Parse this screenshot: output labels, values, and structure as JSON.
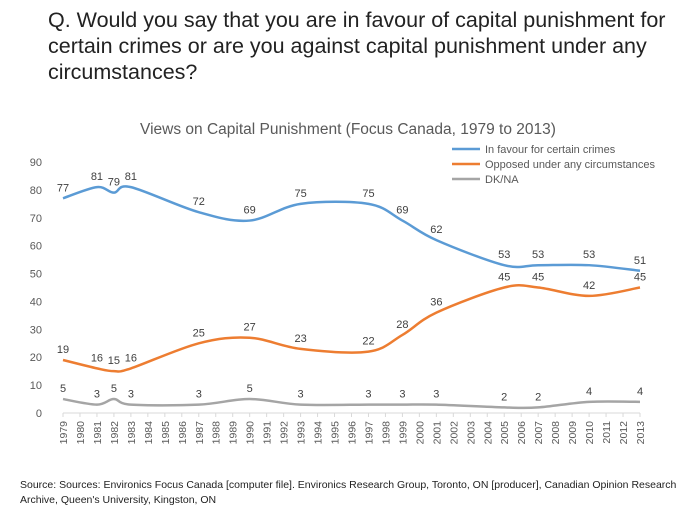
{
  "question": "Q.  Would you say that you are in favour of capital punishment for certain crimes or are you against capital punishment under any circumstances?",
  "source": "Source:  Sources: Environics Focus Canada [computer file]. Environics Research Group, Toronto, ON [producer], Canadian Opinion Research Archive, Queen's University, Kingston, ON",
  "chart_data": {
    "type": "line",
    "title": "Views on Capital Punishment (Focus Canada, 1979 to 2013)",
    "xlabel": "",
    "ylabel": "",
    "ylim": [
      0,
      90
    ],
    "yticks": [
      0,
      10,
      20,
      30,
      40,
      50,
      60,
      70,
      80,
      90
    ],
    "grid": false,
    "legend_position": "top-right",
    "x": [
      "1979",
      "1980",
      "1981",
      "1982",
      "1983",
      "1984",
      "1985",
      "1986",
      "1987",
      "1988",
      "1989",
      "1990",
      "1991",
      "1992",
      "1993",
      "1994",
      "1995",
      "1996",
      "1997",
      "1998",
      "1999",
      "2000",
      "2001",
      "2002",
      "2003",
      "2004",
      "2005",
      "2006",
      "2007",
      "2008",
      "2009",
      "2010",
      "2011",
      "2012",
      "2013"
    ],
    "series": [
      {
        "name": "In favour for certain crimes",
        "color": "#5B9BD5",
        "points": [
          {
            "x": "1979",
            "y": 77
          },
          {
            "x": "1981",
            "y": 81
          },
          {
            "x": "1982",
            "y": 79
          },
          {
            "x": "1983",
            "y": 81
          },
          {
            "x": "1987",
            "y": 72
          },
          {
            "x": "1990",
            "y": 69
          },
          {
            "x": "1993",
            "y": 75
          },
          {
            "x": "1997",
            "y": 75
          },
          {
            "x": "1999",
            "y": 69
          },
          {
            "x": "2001",
            "y": 62
          },
          {
            "x": "2005",
            "y": 53
          },
          {
            "x": "2007",
            "y": 53
          },
          {
            "x": "2010",
            "y": 53
          },
          {
            "x": "2013",
            "y": 51
          }
        ]
      },
      {
        "name": "Opposed under any circumstances",
        "color": "#ED7D31",
        "points": [
          {
            "x": "1979",
            "y": 19
          },
          {
            "x": "1981",
            "y": 16
          },
          {
            "x": "1982",
            "y": 15
          },
          {
            "x": "1983",
            "y": 16
          },
          {
            "x": "1987",
            "y": 25
          },
          {
            "x": "1990",
            "y": 27
          },
          {
            "x": "1993",
            "y": 23
          },
          {
            "x": "1997",
            "y": 22
          },
          {
            "x": "1999",
            "y": 28
          },
          {
            "x": "2001",
            "y": 36
          },
          {
            "x": "2005",
            "y": 45
          },
          {
            "x": "2007",
            "y": 45
          },
          {
            "x": "2010",
            "y": 42
          },
          {
            "x": "2013",
            "y": 45
          }
        ]
      },
      {
        "name": "DK/NA",
        "color": "#A5A5A5",
        "points": [
          {
            "x": "1979",
            "y": 5
          },
          {
            "x": "1981",
            "y": 3
          },
          {
            "x": "1982",
            "y": 5
          },
          {
            "x": "1983",
            "y": 3
          },
          {
            "x": "1987",
            "y": 3
          },
          {
            "x": "1990",
            "y": 5
          },
          {
            "x": "1993",
            "y": 3
          },
          {
            "x": "1997",
            "y": 3
          },
          {
            "x": "1999",
            "y": 3
          },
          {
            "x": "2001",
            "y": 3
          },
          {
            "x": "2005",
            "y": 2
          },
          {
            "x": "2007",
            "y": 2
          },
          {
            "x": "2010",
            "y": 4
          },
          {
            "x": "2013",
            "y": 4
          }
        ]
      }
    ]
  }
}
